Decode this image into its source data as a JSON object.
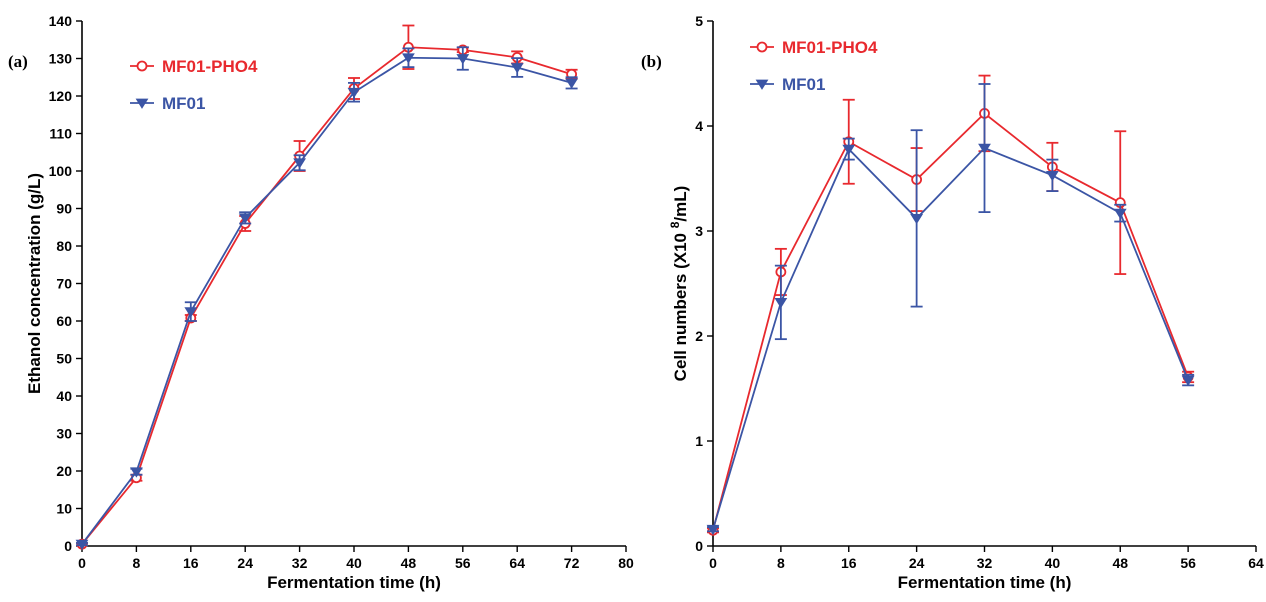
{
  "chart_data": [
    {
      "type": "line",
      "panel_label": "(a)",
      "xlabel": "Fermentation time (h)",
      "ylabel": "Ethanol concentration (g/L)",
      "ylabel_sup": "",
      "ylabel_tail": "",
      "xlim": [
        0,
        80
      ],
      "ylim": [
        0,
        140
      ],
      "xticks": [
        0,
        8,
        16,
        24,
        32,
        40,
        48,
        56,
        64,
        72,
        80
      ],
      "yticks": [
        0,
        10,
        20,
        30,
        40,
        50,
        60,
        70,
        80,
        90,
        100,
        110,
        120,
        130,
        140
      ],
      "legend_position": "top-left",
      "grid": false,
      "series": [
        {
          "name": "MF01-PHO4",
          "color": "#e8292e",
          "marker": "circle",
          "x": [
            0,
            8,
            16,
            24,
            32,
            40,
            48,
            56,
            64,
            72
          ],
          "y": [
            0.5,
            18.2,
            60.8,
            86.0,
            104.0,
            122.0,
            133.0,
            132.3,
            130.3,
            125.8
          ],
          "err": [
            0.3,
            0.8,
            0.8,
            2.0,
            4.0,
            2.8,
            5.8,
            0.6,
            1.6,
            1.2
          ]
        },
        {
          "name": "MF01",
          "color": "#3b55a5",
          "marker": "triangle-down",
          "x": [
            0,
            8,
            16,
            24,
            32,
            40,
            48,
            56,
            64,
            72
          ],
          "y": [
            0.5,
            19.8,
            62.5,
            87.5,
            102.2,
            121.0,
            130.2,
            130.0,
            127.6,
            123.5
          ],
          "err": [
            0.3,
            0.8,
            2.5,
            1.5,
            2.0,
            2.5,
            2.5,
            3.0,
            2.5,
            1.5
          ]
        }
      ]
    },
    {
      "type": "line",
      "panel_label": "(b)",
      "xlabel": "Fermentation time (h)",
      "ylabel": "Cell numbers (X10 ",
      "ylabel_sup": "8",
      "ylabel_tail": "/mL)",
      "xlim": [
        0,
        64
      ],
      "ylim": [
        0,
        5
      ],
      "xticks": [
        0,
        8,
        16,
        24,
        32,
        40,
        48,
        56,
        64
      ],
      "yticks": [
        0,
        1,
        2,
        3,
        4,
        5
      ],
      "legend_position": "top-left",
      "grid": false,
      "series": [
        {
          "name": "MF01-PHO4",
          "color": "#e8292e",
          "marker": "circle",
          "x": [
            0,
            8,
            16,
            24,
            32,
            40,
            48,
            56
          ],
          "y": [
            0.15,
            2.61,
            3.85,
            3.49,
            4.12,
            3.61,
            3.27,
            1.61
          ],
          "err": [
            0.02,
            0.22,
            0.4,
            0.3,
            0.36,
            0.23,
            0.68,
            0.05
          ]
        },
        {
          "name": "MF01",
          "color": "#3b55a5",
          "marker": "triangle-down",
          "x": [
            0,
            8,
            16,
            24,
            32,
            40,
            48,
            56
          ],
          "y": [
            0.16,
            2.32,
            3.78,
            3.12,
            3.79,
            3.53,
            3.17,
            1.58
          ],
          "err": [
            0.02,
            0.35,
            0.1,
            0.84,
            0.61,
            0.15,
            0.08,
            0.05
          ]
        }
      ]
    }
  ]
}
